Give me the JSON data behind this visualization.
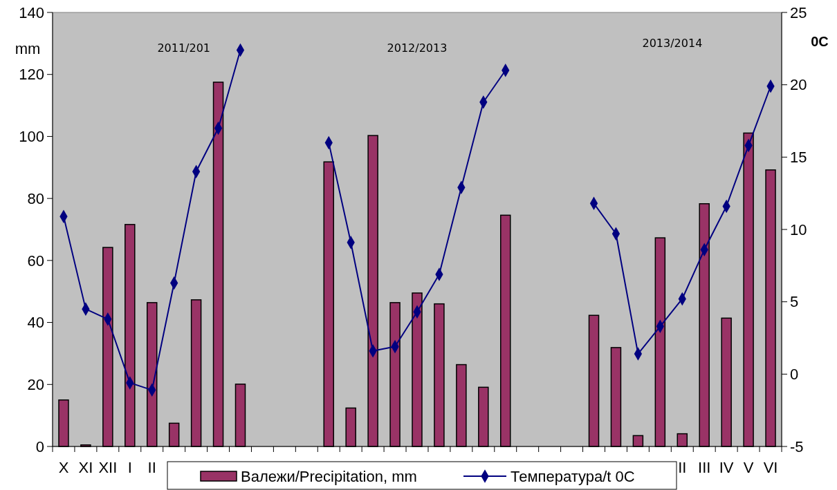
{
  "chart_data": {
    "type": "bar",
    "ylabel": "mm",
    "y2label": "0C",
    "annotations": [
      "2011/201",
      "2012/2013",
      "2013/2014"
    ],
    "categories": [
      "X",
      "XI",
      "XII",
      "I",
      "II",
      null,
      null,
      null,
      null,
      null,
      null,
      null,
      null,
      null,
      null,
      null,
      null,
      null,
      null,
      null,
      null,
      null,
      null,
      null,
      null,
      null,
      null,
      null,
      "II",
      "III",
      "IV",
      "V",
      "VI"
    ],
    "series": [
      {
        "name": "Валежи/Precipitation, mm",
        "color": "#993366",
        "values": [
          15,
          0.5,
          64.2,
          71.6,
          46.4,
          7.5,
          47.3,
          117.5,
          20.1,
          null,
          null,
          null,
          91.8,
          12.4,
          100.3,
          46.4,
          49.5,
          46.0,
          26.4,
          19.1,
          74.6,
          null,
          null,
          null,
          42.3,
          31.9,
          3.5,
          67.3,
          4.1,
          78.3,
          41.4,
          101.1,
          89.2
        ]
      },
      {
        "name": "Температура/t 0C",
        "type": "line",
        "axis": "y2",
        "color": "#000080",
        "marker": "diamond",
        "values": [
          10.9,
          4.5,
          3.8,
          -0.6,
          -1.1,
          6.3,
          14.0,
          17.0,
          22.4,
          null,
          null,
          null,
          16.0,
          9.1,
          1.6,
          1.9,
          4.3,
          6.9,
          12.9,
          18.8,
          21.0,
          null,
          null,
          null,
          11.8,
          9.7,
          1.4,
          3.3,
          5.2,
          8.6,
          11.6,
          15.8,
          19.9
        ]
      }
    ],
    "ylim": [
      0,
      140
    ],
    "yticks": [
      0,
      20,
      40,
      60,
      80,
      100,
      120,
      140
    ],
    "y2lim": [
      -5,
      25
    ],
    "y2ticks": [
      -5,
      0,
      5,
      10,
      15,
      20,
      25
    ],
    "grid": false,
    "legend": "bottom"
  }
}
